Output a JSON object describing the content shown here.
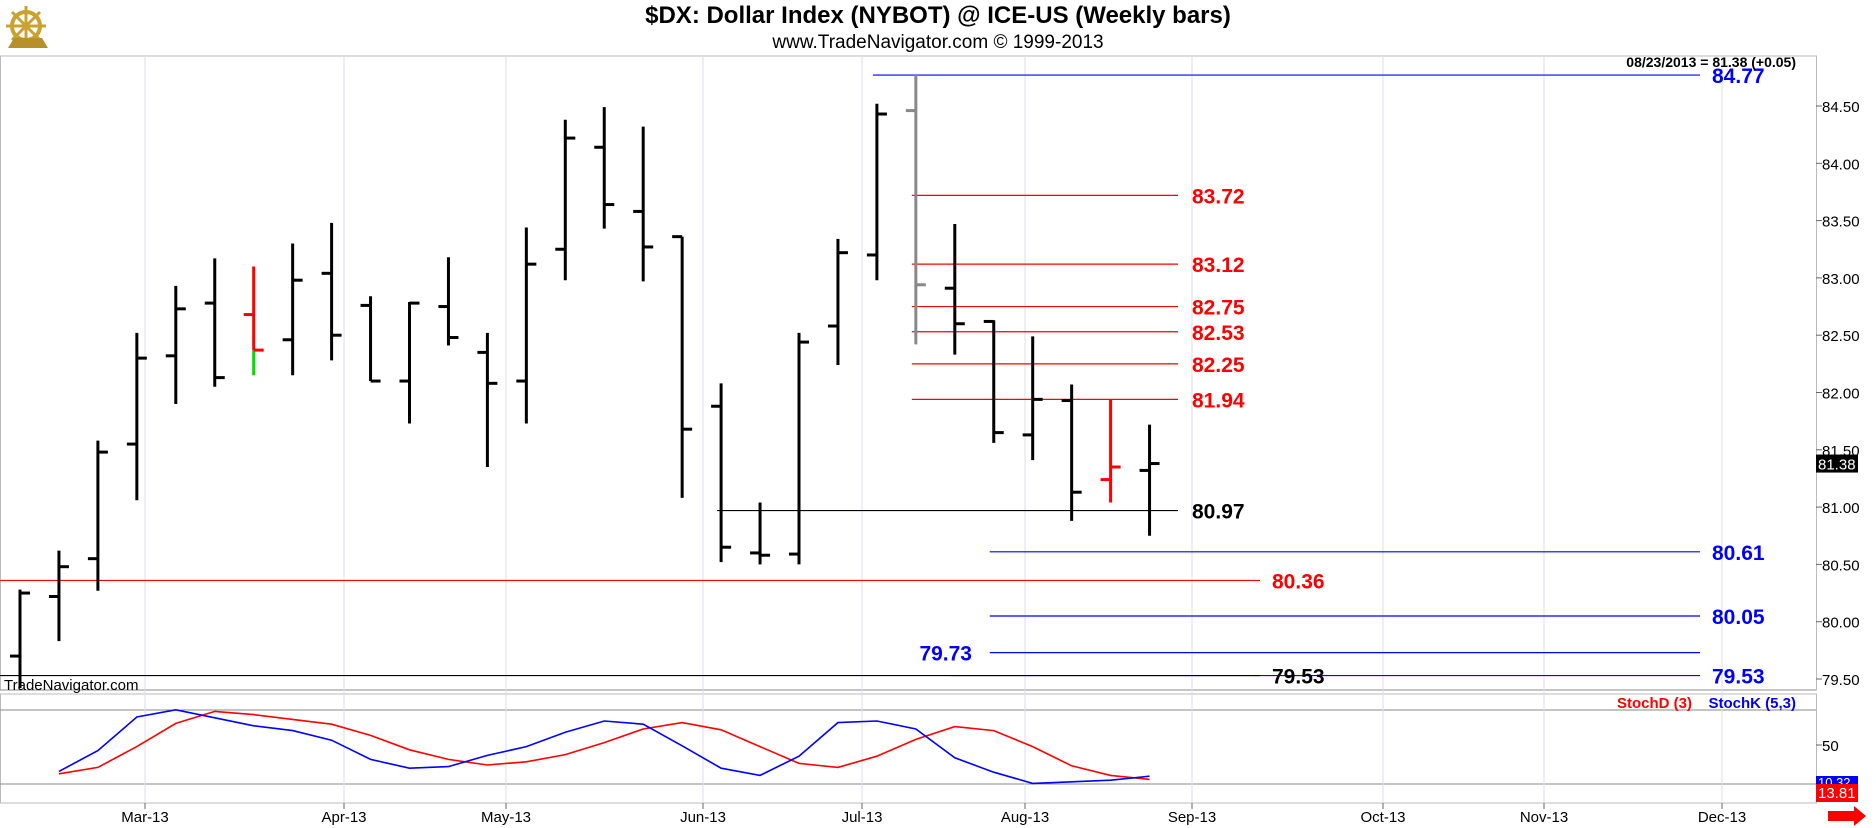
{
  "header": {
    "title": "$DX:  Dollar Index (NYBOT) @ ICE-US  (Weekly bars)",
    "subtitle": "www.TradeNavigator.com © 1999-2013",
    "logo_icon": "ship-wheel-logo-icon"
  },
  "chart_data": [
    {
      "type": "ohlc",
      "ylim": [
        79.4,
        84.95
      ],
      "y_ticks": [
        "79.50",
        "80.00",
        "80.50",
        "81.00",
        "81.50",
        "82.00",
        "82.50",
        "83.00",
        "83.50",
        "84.00",
        "84.50"
      ],
      "x_ticks": [
        "Mar-13",
        "Apr-13",
        "May-13",
        "Jun-13",
        "Jul-13",
        "Aug-13",
        "Sep-13",
        "Oct-13",
        "Nov-13",
        "Dec-13"
      ],
      "quote_label": "08/23/2013 = 81.38 (+0.05)",
      "last_price": "81.38",
      "watermark": "TradeNavigator.com",
      "bars": [
        {
          "o": 79.7,
          "h": 80.28,
          "l": 79.42,
          "c": 80.25,
          "color": "black"
        },
        {
          "o": 80.22,
          "h": 80.62,
          "l": 79.83,
          "c": 80.48,
          "color": "black"
        },
        {
          "o": 80.55,
          "h": 81.58,
          "l": 80.27,
          "c": 81.48,
          "color": "black"
        },
        {
          "o": 81.55,
          "h": 82.52,
          "l": 81.06,
          "c": 82.3,
          "color": "black"
        },
        {
          "o": 82.32,
          "h": 82.93,
          "l": 81.9,
          "c": 82.73,
          "color": "black"
        },
        {
          "o": 82.78,
          "h": 83.17,
          "l": 82.05,
          "c": 82.13,
          "color": "black"
        },
        {
          "o": 82.68,
          "h": 83.1,
          "l": 82.15,
          "c": 82.37,
          "color": "red",
          "low_segment_color": "#00dd00"
        },
        {
          "o": 82.46,
          "h": 83.3,
          "l": 82.15,
          "c": 82.98,
          "color": "black"
        },
        {
          "o": 83.04,
          "h": 83.48,
          "l": 82.28,
          "c": 82.5,
          "color": "black"
        },
        {
          "o": 82.76,
          "h": 82.84,
          "l": 82.1,
          "c": 82.1,
          "color": "black"
        },
        {
          "o": 82.1,
          "h": 82.79,
          "l": 81.73,
          "c": 82.78,
          "color": "black"
        },
        {
          "o": 82.75,
          "h": 83.18,
          "l": 82.41,
          "c": 82.48,
          "color": "black"
        },
        {
          "o": 82.35,
          "h": 82.52,
          "l": 81.35,
          "c": 82.08,
          "color": "black"
        },
        {
          "o": 82.1,
          "h": 83.44,
          "l": 81.73,
          "c": 83.12,
          "color": "black"
        },
        {
          "o": 83.25,
          "h": 84.38,
          "l": 82.98,
          "c": 84.22,
          "color": "black"
        },
        {
          "o": 84.14,
          "h": 84.49,
          "l": 83.43,
          "c": 83.64,
          "color": "black"
        },
        {
          "o": 83.58,
          "h": 84.32,
          "l": 82.97,
          "c": 83.27,
          "color": "black"
        },
        {
          "o": 83.36,
          "h": 83.36,
          "l": 81.08,
          "c": 81.68,
          "color": "black"
        },
        {
          "o": 81.88,
          "h": 82.08,
          "l": 80.52,
          "c": 80.65,
          "color": "black"
        },
        {
          "o": 80.6,
          "h": 81.04,
          "l": 80.5,
          "c": 80.58,
          "color": "black"
        },
        {
          "o": 80.59,
          "h": 82.52,
          "l": 80.5,
          "c": 82.44,
          "color": "black"
        },
        {
          "o": 82.58,
          "h": 83.34,
          "l": 82.24,
          "c": 83.22,
          "color": "black"
        },
        {
          "o": 83.2,
          "h": 84.52,
          "l": 82.98,
          "c": 84.43,
          "color": "black"
        },
        {
          "o": 84.46,
          "h": 84.77,
          "l": 82.42,
          "c": 82.94,
          "color": "gray"
        },
        {
          "o": 82.91,
          "h": 83.47,
          "l": 82.33,
          "c": 82.6,
          "color": "black"
        },
        {
          "o": 82.62,
          "h": 82.63,
          "l": 81.56,
          "c": 81.65,
          "color": "black"
        },
        {
          "o": 81.63,
          "h": 82.49,
          "l": 81.41,
          "c": 81.94,
          "color": "black"
        },
        {
          "o": 81.93,
          "h": 82.07,
          "l": 80.88,
          "c": 81.13,
          "color": "black"
        },
        {
          "o": 81.24,
          "h": 81.94,
          "l": 81.04,
          "c": 81.35,
          "color": "red"
        },
        {
          "o": 81.32,
          "h": 81.72,
          "l": 80.75,
          "c": 81.38,
          "color": "black"
        }
      ],
      "levels": [
        {
          "value": 84.77,
          "label": "84.77",
          "color": "#0000ff",
          "line_from_bar": 22,
          "label_pos": "right"
        },
        {
          "value": 83.72,
          "label": "83.72",
          "color": "#ff0000",
          "line_from_bar": 23,
          "label_pos": "mid"
        },
        {
          "value": 83.12,
          "label": "83.12",
          "color": "#ff0000",
          "line_from_bar": 23,
          "label_pos": "mid"
        },
        {
          "value": 82.75,
          "label": "82.75",
          "color": "#ff0000",
          "line_from_bar": 23,
          "label_pos": "mid"
        },
        {
          "value": 82.53,
          "label": "82.53",
          "color": "#ff0000",
          "line_from_bar": 23,
          "label_pos": "mid"
        },
        {
          "value": 82.25,
          "label": "82.25",
          "color": "#ff0000",
          "line_from_bar": 23,
          "label_pos": "mid"
        },
        {
          "value": 81.94,
          "label": "81.94",
          "color": "#ff0000",
          "line_from_bar": 23,
          "label_pos": "mid"
        },
        {
          "value": 80.97,
          "label": "80.97",
          "color": "#000000",
          "line_from_bar": 18,
          "label_pos": "mid"
        },
        {
          "value": 80.61,
          "label": "80.61",
          "color": "#0000ff",
          "line_from_bar": 25,
          "label_pos": "right"
        },
        {
          "value": 80.36,
          "label": "80.36",
          "color": "#ff0000",
          "line_from_bar": 0,
          "label_pos": "mid2"
        },
        {
          "value": 80.05,
          "label": "80.05",
          "color": "#0000ff",
          "line_from_bar": 25,
          "label_pos": "right"
        },
        {
          "value": 79.73,
          "label": "79.73",
          "color": "#0000ff",
          "line_from_bar": 25,
          "label_pos": "left"
        },
        {
          "value": 79.53,
          "label": "79.53",
          "color": "#0000ff",
          "line_from_bar": 24,
          "label_pos": "right"
        },
        {
          "value": 79.53,
          "label": "79.53",
          "color": "#000000",
          "line_from_bar": 0,
          "label_pos": "mid2"
        }
      ]
    },
    {
      "type": "line",
      "title": "",
      "ylim": [
        0,
        100
      ],
      "y_ticks": [
        "50"
      ],
      "series": [
        {
          "name": "StochD (3)",
          "color": "#ff0000",
          "values": [
            14,
            22,
            48,
            77,
            92,
            88,
            82,
            76,
            62,
            44,
            32,
            25,
            29,
            38,
            53,
            70,
            78,
            69,
            48,
            27,
            22,
            36,
            57,
            73,
            68,
            48,
            24,
            12,
            7
          ]
        },
        {
          "name": "StochK (5,3)",
          "color": "#0000ff",
          "values": [
            17,
            43,
            85,
            94,
            84,
            74,
            68,
            56,
            32,
            21,
            23,
            37,
            48,
            66,
            80,
            76,
            49,
            21,
            12,
            36,
            78,
            80,
            70,
            34,
            16,
            2,
            4,
            6,
            11
          ]
        }
      ],
      "last_labels": [
        "10.32",
        "13.81"
      ]
    }
  ]
}
